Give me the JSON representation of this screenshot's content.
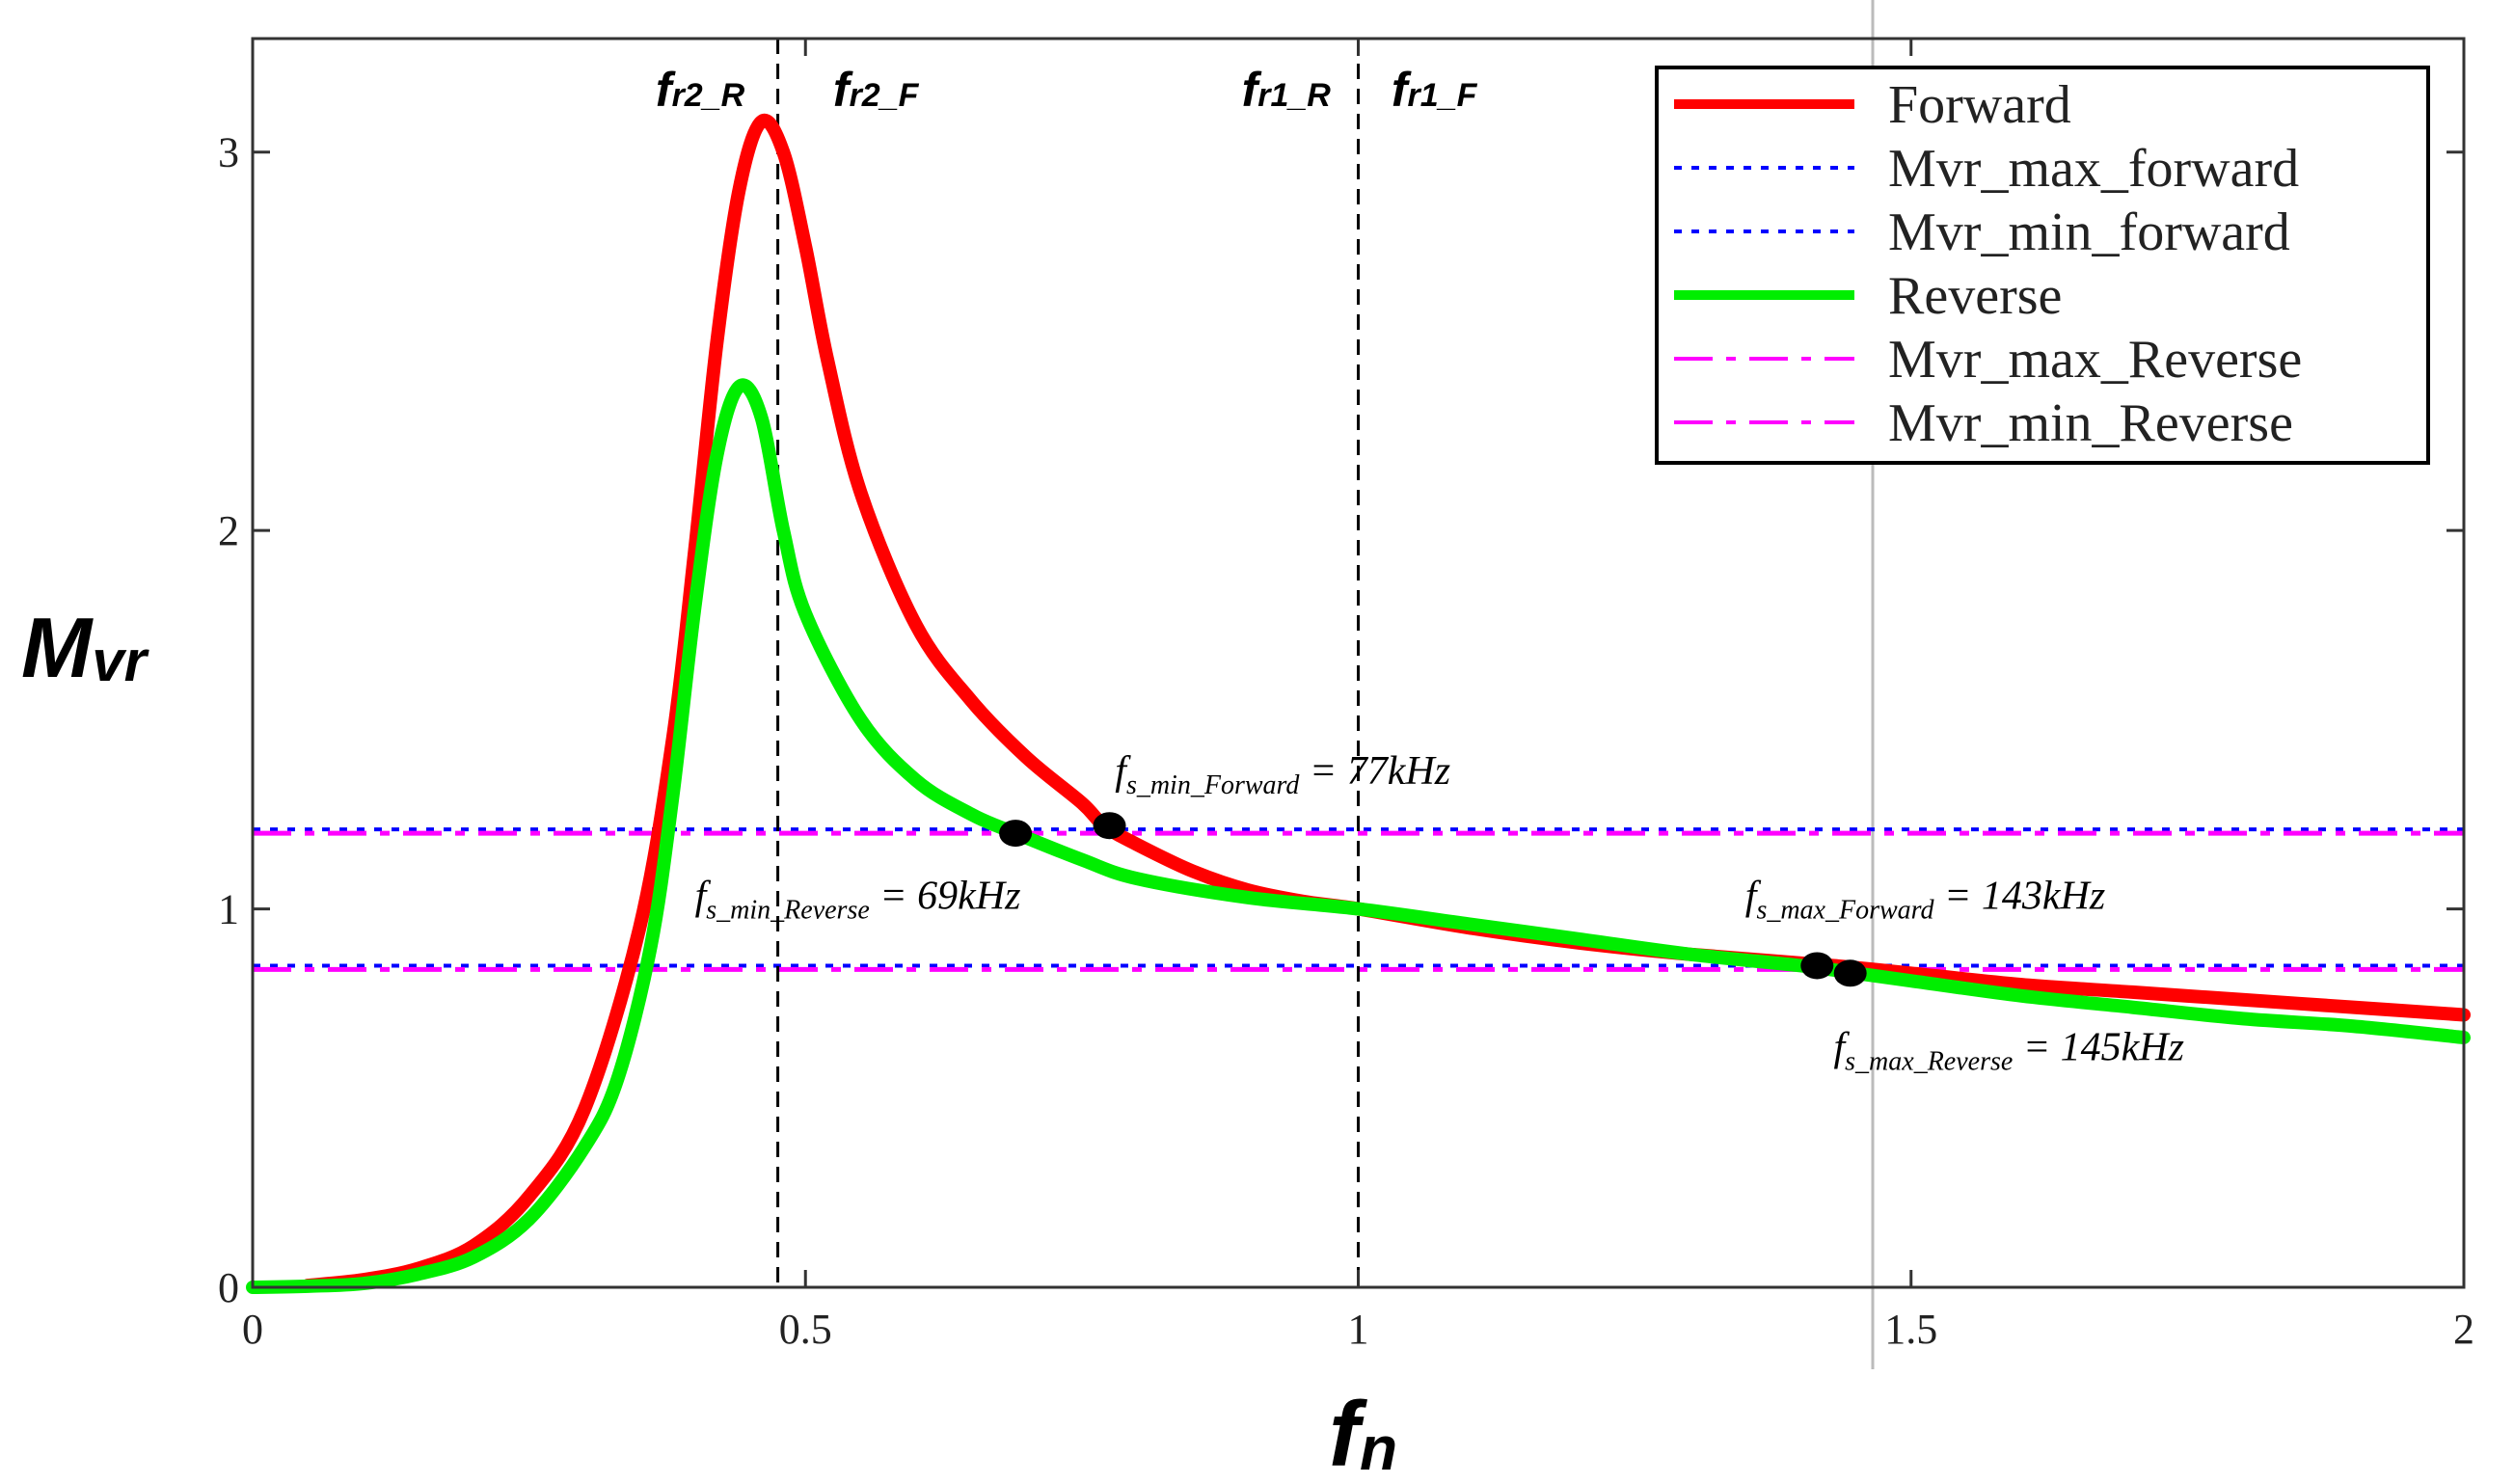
{
  "chart_data": {
    "type": "line",
    "title": "",
    "xlabel": {
      "main": "f",
      "sub": "n"
    },
    "ylabel": {
      "main": "M",
      "sub": "vr"
    },
    "xlim": [
      0,
      2
    ],
    "ylim": [
      0,
      3.3
    ],
    "x_ticks": [
      {
        "value": 0,
        "label": "0"
      },
      {
        "value": 0.5,
        "label": "0.5"
      },
      {
        "value": 1,
        "label": "1"
      },
      {
        "value": 1.5,
        "label": "1.5"
      },
      {
        "value": 2,
        "label": "2"
      }
    ],
    "y_ticks": [
      {
        "value": 0,
        "label": "0"
      },
      {
        "value": 1,
        "label": "1"
      },
      {
        "value": 2,
        "label": "2"
      },
      {
        "value": 3,
        "label": "3"
      }
    ],
    "series": [
      {
        "name": "Forward",
        "color": "#ff0000",
        "style": "solid",
        "points": [
          [
            0.05,
            0.005
          ],
          [
            0.1,
            0.02
          ],
          [
            0.15,
            0.05
          ],
          [
            0.2,
            0.11
          ],
          [
            0.25,
            0.24
          ],
          [
            0.3,
            0.47
          ],
          [
            0.35,
            0.95
          ],
          [
            0.38,
            1.45
          ],
          [
            0.4,
            1.95
          ],
          [
            0.42,
            2.5
          ],
          [
            0.44,
            2.9
          ],
          [
            0.46,
            3.08
          ],
          [
            0.48,
            3.0
          ],
          [
            0.5,
            2.75
          ],
          [
            0.52,
            2.45
          ],
          [
            0.55,
            2.1
          ],
          [
            0.6,
            1.75
          ],
          [
            0.65,
            1.55
          ],
          [
            0.7,
            1.4
          ],
          [
            0.75,
            1.28
          ],
          [
            0.77,
            1.22
          ],
          [
            0.8,
            1.17
          ],
          [
            0.85,
            1.1
          ],
          [
            0.9,
            1.05
          ],
          [
            0.95,
            1.02
          ],
          [
            1.0,
            1.0
          ],
          [
            1.1,
            0.95
          ],
          [
            1.2,
            0.91
          ],
          [
            1.3,
            0.88
          ],
          [
            1.43,
            0.85
          ],
          [
            1.5,
            0.83
          ],
          [
            1.6,
            0.8
          ],
          [
            1.7,
            0.78
          ],
          [
            1.8,
            0.76
          ],
          [
            1.9,
            0.74
          ],
          [
            2.0,
            0.72
          ]
        ]
      },
      {
        "name": "Reverse",
        "color": "#00ee00",
        "style": "solid",
        "points": [
          [
            0,
            0
          ],
          [
            0.05,
            0.003
          ],
          [
            0.1,
            0.01
          ],
          [
            0.15,
            0.035
          ],
          [
            0.2,
            0.08
          ],
          [
            0.25,
            0.18
          ],
          [
            0.3,
            0.37
          ],
          [
            0.33,
            0.55
          ],
          [
            0.36,
            0.9
          ],
          [
            0.38,
            1.3
          ],
          [
            0.4,
            1.8
          ],
          [
            0.42,
            2.2
          ],
          [
            0.44,
            2.38
          ],
          [
            0.46,
            2.3
          ],
          [
            0.48,
            2.0
          ],
          [
            0.5,
            1.78
          ],
          [
            0.55,
            1.5
          ],
          [
            0.6,
            1.34
          ],
          [
            0.65,
            1.25
          ],
          [
            0.69,
            1.2
          ],
          [
            0.75,
            1.13
          ],
          [
            0.8,
            1.08
          ],
          [
            0.9,
            1.03
          ],
          [
            1.0,
            1.0
          ],
          [
            1.1,
            0.96
          ],
          [
            1.2,
            0.92
          ],
          [
            1.3,
            0.88
          ],
          [
            1.4,
            0.85
          ],
          [
            1.45,
            0.83
          ],
          [
            1.5,
            0.81
          ],
          [
            1.6,
            0.77
          ],
          [
            1.7,
            0.74
          ],
          [
            1.8,
            0.71
          ],
          [
            1.9,
            0.69
          ],
          [
            2.0,
            0.66
          ]
        ]
      }
    ],
    "hlines": [
      {
        "name": "Mvr_max_forward",
        "value": 1.21,
        "color": "#0000ff",
        "style": "dotted"
      },
      {
        "name": "Mvr_min_forward",
        "value": 0.85,
        "color": "#0000ff",
        "style": "dotted"
      },
      {
        "name": "Mvr_max_Reverse",
        "value": 1.2,
        "color": "#ff00ff",
        "style": "dashdot"
      },
      {
        "name": "Mvr_min_Reverse",
        "value": 0.84,
        "color": "#ff00ff",
        "style": "dashdot"
      }
    ],
    "vlines": [
      {
        "value": 0.475,
        "label": {
          "main": "f",
          "sub": "r2_R"
        }
      },
      {
        "value": 1.0,
        "label": {
          "main": "f",
          "sub": "r1_R"
        }
      }
    ],
    "top_labels": [
      {
        "x": 0.445,
        "main": "f",
        "sub": "r2_R",
        "anchor": "end"
      },
      {
        "x": 0.525,
        "main": "f",
        "sub": "r2_F",
        "anchor": "start"
      },
      {
        "x": 0.975,
        "main": "f",
        "sub": "r1_R",
        "anchor": "end"
      },
      {
        "x": 1.03,
        "main": "f",
        "sub": "r1_F",
        "anchor": "start"
      }
    ],
    "points": [
      {
        "x": 0.69,
        "y": 1.2,
        "label": "f_s_min_Reverse = 69kHz"
      },
      {
        "x": 0.775,
        "y": 1.22,
        "label": "f_s_min_Forward = 77kHz"
      },
      {
        "x": 1.415,
        "y": 0.85,
        "label": "f_s_max_Forward = 143kHz"
      },
      {
        "x": 1.445,
        "y": 0.83,
        "label": "f_s_max_Reverse = 145kHz"
      }
    ],
    "annotations": [
      {
        "x": 0.78,
        "y": 1.33,
        "main": "f",
        "sub": "s_min_Forward",
        "rest": " = 77kHz"
      },
      {
        "x": 0.4,
        "y": 1.0,
        "main": "f",
        "sub": "s_min_Reverse",
        "rest": " = 69kHz"
      },
      {
        "x": 1.35,
        "y": 1.0,
        "main": "f",
        "sub": "s_max_Forward",
        "rest": " = 143kHz"
      },
      {
        "x": 1.43,
        "y": 0.6,
        "main": "f",
        "sub": "s_max_Reverse",
        "rest": " = 145kHz"
      }
    ],
    "legend": {
      "position": "top-right",
      "entries": [
        {
          "label": "Forward",
          "color": "#ff0000",
          "style": "solid"
        },
        {
          "label": "Mvr_max_forward",
          "color": "#0000ff",
          "style": "dotted"
        },
        {
          "label": "Mvr_min_forward",
          "color": "#0000ff",
          "style": "dotted"
        },
        {
          "label": "Reverse",
          "color": "#00ee00",
          "style": "solid"
        },
        {
          "label": "Mvr_max_Reverse",
          "color": "#ff00ff",
          "style": "dashdot"
        },
        {
          "label": "Mvr_min_Reverse",
          "color": "#ff00ff",
          "style": "dashdot"
        }
      ]
    }
  }
}
